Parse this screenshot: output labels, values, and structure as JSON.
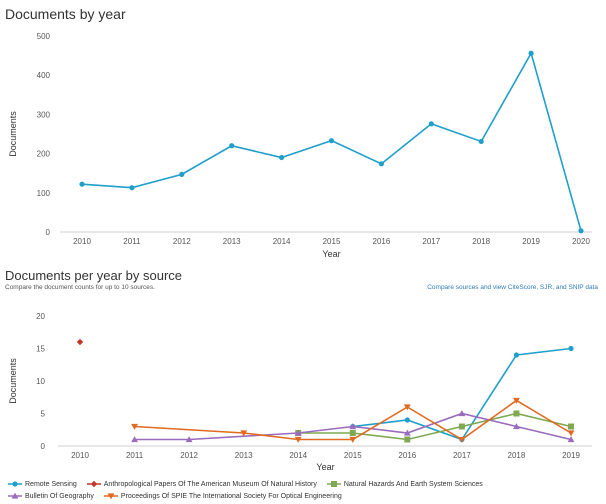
{
  "chart_data": [
    {
      "type": "line",
      "title": "Documents by year",
      "xlabel": "Year",
      "ylabel": "Documents",
      "ylim": [
        0,
        500
      ],
      "yticks": [
        0,
        100,
        200,
        300,
        400,
        500
      ],
      "x": [
        2010,
        2011,
        2012,
        2013,
        2014,
        2015,
        2016,
        2017,
        2018,
        2019,
        2020
      ],
      "series": [
        {
          "color": "#1f9fca",
          "values": [
            122,
            113,
            147,
            220,
            190,
            233,
            174,
            276,
            231,
            456,
            3
          ]
        }
      ],
      "grid": false
    },
    {
      "type": "line",
      "title": "Documents per year by source",
      "subtitle": "Compare the document counts for up to 10 sources.",
      "link_text": "Compare sources and view CiteScore, SJR, and SNIP data",
      "xlabel": "Year",
      "ylabel": "Documents",
      "ylim": [
        0,
        20
      ],
      "yticks": [
        0,
        5,
        10,
        15,
        20
      ],
      "x": [
        2010,
        2011,
        2012,
        2013,
        2014,
        2015,
        2016,
        2017,
        2018,
        2019
      ],
      "legend_position": "bottom",
      "series": [
        {
          "name": "Remote Sensing",
          "color": "#1f9fca",
          "marker": "circle",
          "values": [
            null,
            null,
            null,
            null,
            null,
            3,
            4,
            1,
            14,
            15
          ]
        },
        {
          "name": "Anthropological Papers Of The American Museum Of Natural History",
          "color": "#c0392b",
          "marker": "diamond",
          "values": [
            16,
            null,
            null,
            null,
            null,
            null,
            null,
            null,
            null,
            null
          ]
        },
        {
          "name": "Natural Hazards And Earth System Sciences",
          "color": "#7fa852",
          "marker": "square",
          "values": [
            null,
            null,
            null,
            null,
            2,
            2,
            1,
            3,
            5,
            3
          ]
        },
        {
          "name": "Bulletin Of Geography",
          "color": "#9b6bbd",
          "marker": "triangle",
          "values": [
            null,
            1,
            1,
            null,
            2,
            3,
            2,
            5,
            3,
            1
          ]
        },
        {
          "name": "Proceedings Of SPIE The International Society For Optical Engineering",
          "color": "#e06a1f",
          "marker": "triangle-down",
          "values": [
            null,
            3,
            null,
            2,
            1,
            1,
            6,
            1,
            7,
            2
          ]
        }
      ],
      "grid": false
    }
  ]
}
